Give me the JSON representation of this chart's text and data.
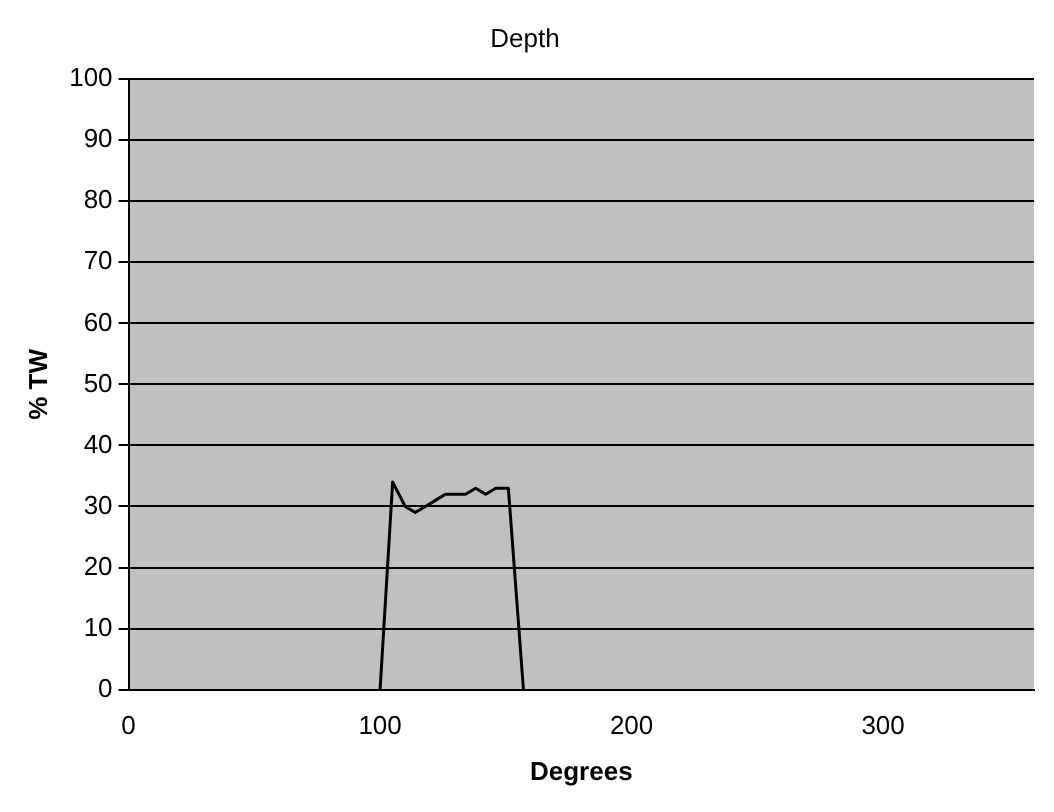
{
  "chart_data": {
    "type": "line",
    "title": "Depth",
    "xlabel": "Degrees",
    "ylabel": "% TW",
    "x": [
      100,
      105,
      110,
      114,
      118,
      122,
      126,
      130,
      134,
      138,
      142,
      146,
      151,
      157
    ],
    "series": [
      {
        "color": "#000000",
        "values": [
          0,
          34,
          30,
          29,
          30,
          31,
          32,
          32,
          32,
          33,
          32,
          33,
          33,
          0
        ]
      }
    ],
    "xlim": [
      0,
      360
    ],
    "xticks": [
      0,
      100,
      200,
      300
    ],
    "ylim": [
      0,
      100
    ],
    "yticks": [
      0,
      10,
      20,
      30,
      40,
      50,
      60,
      70,
      80,
      90,
      100
    ],
    "grid": "y",
    "legend": false,
    "marker": "none",
    "line_style": "solid"
  }
}
